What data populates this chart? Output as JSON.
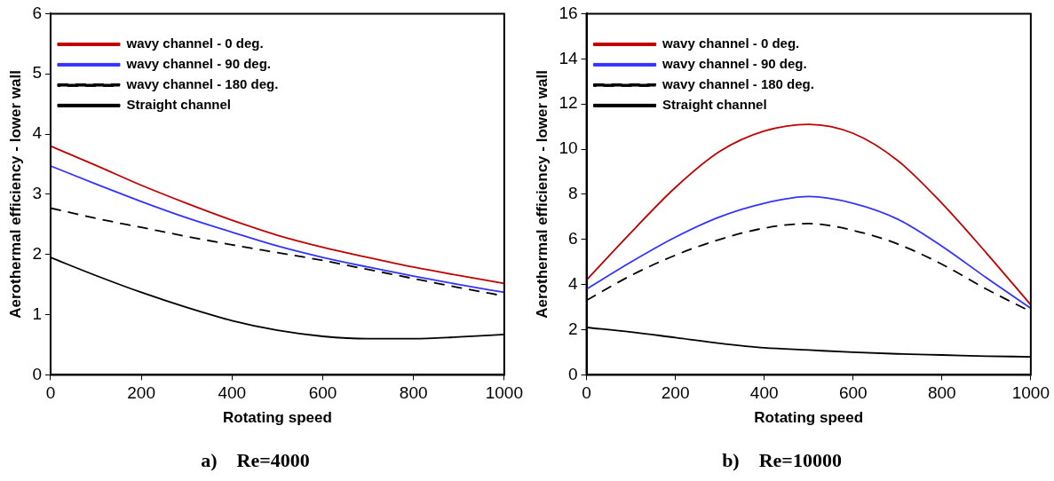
{
  "chart_data": [
    {
      "type": "line",
      "title": "a)    Re=4000",
      "xlabel": "Rotating speed",
      "ylabel": "Aerothermal efficiency - lower wall",
      "x": [
        0,
        100,
        200,
        300,
        400,
        500,
        600,
        700,
        800,
        900,
        1000
      ],
      "xlim": [
        0,
        1000
      ],
      "xticks": [
        0,
        200,
        400,
        600,
        800,
        1000
      ],
      "ylim": [
        0,
        6
      ],
      "yticks": [
        0,
        1,
        2,
        3,
        4,
        5,
        6
      ],
      "grid": false,
      "legend": "top left",
      "series": [
        {
          "name": "wavy channel - 0 deg.",
          "color": "#c00000",
          "line_style": "solid",
          "values": [
            3.8,
            3.48,
            3.15,
            2.85,
            2.57,
            2.32,
            2.12,
            1.95,
            1.79,
            1.65,
            1.52
          ]
        },
        {
          "name": "wavy channel - 90 deg.",
          "color": "#3333ff",
          "line_style": "solid",
          "values": [
            3.47,
            3.17,
            2.88,
            2.61,
            2.37,
            2.14,
            1.95,
            1.79,
            1.64,
            1.5,
            1.37
          ]
        },
        {
          "name": "wavy channel - 180 deg.",
          "color": "#000000",
          "line_style": "dashed",
          "values": [
            2.77,
            2.6,
            2.45,
            2.3,
            2.16,
            2.03,
            1.9,
            1.75,
            1.6,
            1.45,
            1.31
          ]
        },
        {
          "name": "Straight channel",
          "color": "#000000",
          "line_style": "solid",
          "values": [
            1.95,
            1.65,
            1.37,
            1.12,
            0.9,
            0.74,
            0.64,
            0.6,
            0.6,
            0.63,
            0.67
          ]
        }
      ]
    },
    {
      "type": "line",
      "title": "b)    Re=10000",
      "xlabel": "Rotating speed",
      "ylabel": "Aerothermal efficiency - lower wall",
      "x": [
        0,
        100,
        200,
        300,
        400,
        500,
        600,
        700,
        800,
        900,
        1000
      ],
      "xlim": [
        0,
        1000
      ],
      "xticks": [
        0,
        200,
        400,
        600,
        800,
        1000
      ],
      "ylim": [
        0,
        16
      ],
      "yticks": [
        0,
        2,
        4,
        6,
        8,
        10,
        12,
        14,
        16
      ],
      "grid": false,
      "legend": "top left",
      "series": [
        {
          "name": "wavy channel - 0 deg.",
          "color": "#c00000",
          "line_style": "solid",
          "values": [
            4.2,
            6.3,
            8.3,
            9.9,
            10.8,
            11.1,
            10.7,
            9.5,
            7.6,
            5.4,
            3.1
          ]
        },
        {
          "name": "wavy channel - 90 deg.",
          "color": "#3333ff",
          "line_style": "solid",
          "values": [
            3.8,
            5.0,
            6.1,
            7.0,
            7.6,
            7.9,
            7.6,
            6.9,
            5.7,
            4.3,
            2.95
          ]
        },
        {
          "name": "wavy channel - 180 deg.",
          "color": "#000000",
          "line_style": "dashed",
          "values": [
            3.3,
            4.4,
            5.3,
            6.0,
            6.5,
            6.7,
            6.4,
            5.8,
            4.9,
            3.8,
            2.8
          ]
        },
        {
          "name": "Straight channel",
          "color": "#000000",
          "line_style": "solid",
          "values": [
            2.1,
            1.9,
            1.65,
            1.4,
            1.2,
            1.1,
            1.0,
            0.93,
            0.88,
            0.83,
            0.8
          ]
        }
      ]
    }
  ]
}
